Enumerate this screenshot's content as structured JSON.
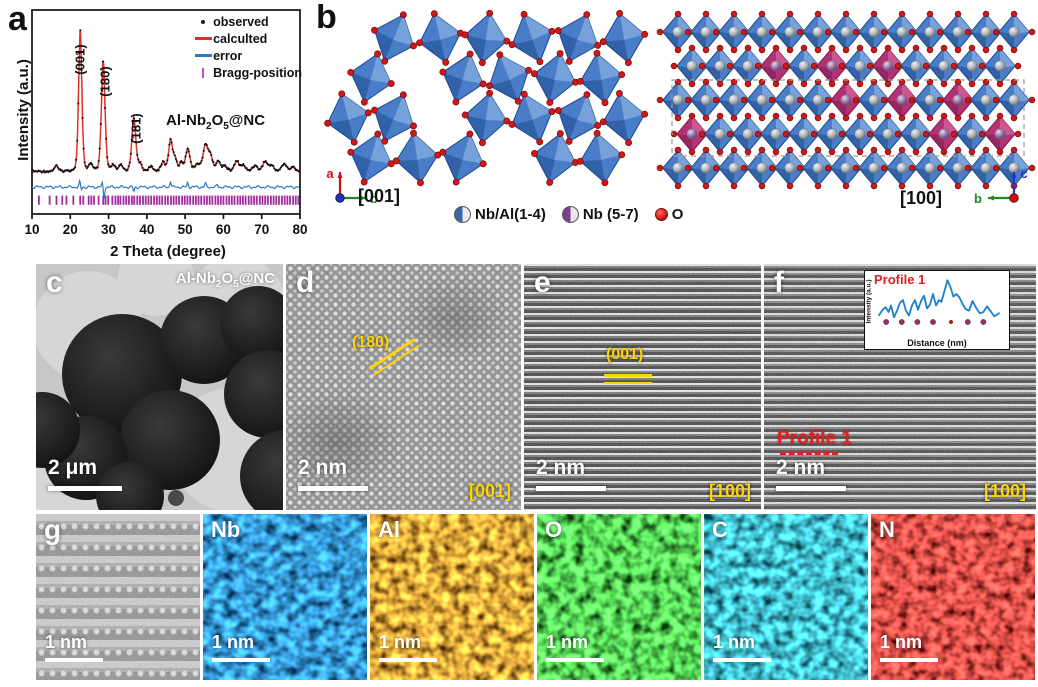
{
  "sample_formula": {
    "pre": "Al-Nb",
    "sub1": "2",
    "mid": "O",
    "sub2": "5",
    "post": "@NC"
  },
  "annotation_colors": {
    "yellow": "#ffd400",
    "red": "#e02020",
    "white": "#ffffff"
  },
  "panel_a": {
    "letter": "a",
    "xlabel": "2 Theta (degree)",
    "ylabel": "Intensity (a.u.)",
    "legend": [
      {
        "label": "observed",
        "marker": "dot",
        "color": "#1a1a1a"
      },
      {
        "label": "calculted",
        "marker": "line",
        "color": "#e03127"
      },
      {
        "label": "error",
        "marker": "line",
        "color": "#2d7bbf"
      },
      {
        "label": "Bragg-position",
        "marker": "tick",
        "color": "#c04ec0"
      }
    ],
    "peak_labels": [
      "(001)",
      "(180)",
      "(181)"
    ]
  },
  "chart_data": [
    {
      "id": "xrd",
      "type": "line",
      "xlabel": "2 Theta (degree)",
      "ylabel": "Intensity (a.u.)",
      "xlim": [
        10,
        80
      ],
      "x_ticks": [
        10,
        20,
        30,
        40,
        50,
        60,
        70,
        80
      ],
      "baseline": 4,
      "series": [
        "observed",
        "calculted",
        "error",
        "Bragg-position"
      ],
      "peaks": [
        {
          "two_theta": 16.3,
          "intensity": 4,
          "w": 0.5
        },
        {
          "two_theta": 22.6,
          "intensity": 100,
          "w": 0.45,
          "label": "(001)"
        },
        {
          "two_theta": 25.3,
          "intensity": 5,
          "w": 0.5
        },
        {
          "two_theta": 28.6,
          "intensity": 78,
          "w": 0.5,
          "label": "(180)"
        },
        {
          "two_theta": 31.2,
          "intensity": 4,
          "w": 0.5
        },
        {
          "two_theta": 33.2,
          "intensity": 4,
          "w": 0.55
        },
        {
          "two_theta": 36.6,
          "intensity": 38,
          "w": 0.55,
          "label": "(181)"
        },
        {
          "two_theta": 38.2,
          "intensity": 5,
          "w": 0.5
        },
        {
          "two_theta": 41.0,
          "intensity": 3,
          "w": 0.6
        },
        {
          "two_theta": 44.2,
          "intensity": 6,
          "w": 0.6
        },
        {
          "two_theta": 46.2,
          "intensity": 22,
          "w": 0.55
        },
        {
          "two_theta": 47.4,
          "intensity": 8,
          "w": 0.5
        },
        {
          "two_theta": 49.0,
          "intensity": 6,
          "w": 0.5
        },
        {
          "two_theta": 50.7,
          "intensity": 16,
          "w": 0.6
        },
        {
          "two_theta": 53.2,
          "intensity": 5,
          "w": 0.6
        },
        {
          "two_theta": 55.3,
          "intensity": 18,
          "w": 0.7
        },
        {
          "two_theta": 56.6,
          "intensity": 10,
          "w": 0.6
        },
        {
          "two_theta": 58.6,
          "intensity": 7,
          "w": 0.6
        },
        {
          "two_theta": 60.3,
          "intensity": 4,
          "w": 0.6
        },
        {
          "two_theta": 63.5,
          "intensity": 7,
          "w": 0.7
        },
        {
          "two_theta": 65.2,
          "intensity": 4,
          "w": 0.6
        },
        {
          "two_theta": 68.2,
          "intensity": 4,
          "w": 0.7
        },
        {
          "two_theta": 70.9,
          "intensity": 7,
          "w": 0.7
        },
        {
          "two_theta": 72.6,
          "intensity": 4,
          "w": 0.6
        },
        {
          "two_theta": 75.9,
          "intensity": 5,
          "w": 0.8
        },
        {
          "two_theta": 78.3,
          "intensity": 3,
          "w": 0.6
        }
      ],
      "error_spikes": [
        {
          "two_theta": 22.5,
          "amp": 4
        },
        {
          "two_theta": 22.9,
          "amp": -2
        },
        {
          "two_theta": 28.4,
          "amp": 3
        },
        {
          "two_theta": 28.8,
          "amp": -8
        },
        {
          "two_theta": 36.6,
          "amp": -3
        },
        {
          "two_theta": 46.2,
          "amp": 4
        },
        {
          "two_theta": 50.7,
          "amp": 3
        },
        {
          "two_theta": 55.3,
          "amp": 2.5
        },
        {
          "two_theta": 58.4,
          "amp": 1.5
        }
      ],
      "bragg_positions": [
        11.8,
        14.6,
        16.4,
        17.9,
        19.0,
        20.8,
        22.6,
        23.4,
        24.8,
        25.5,
        26.2,
        27.4,
        28.6,
        29.2,
        29.9,
        31.0,
        31.8,
        32.5,
        33.1,
        33.9,
        34.6,
        35.3,
        36.1,
        36.7,
        37.5,
        38.2,
        39.0,
        39.7,
        40.4,
        41.1,
        41.9,
        42.6,
        43.3,
        44.0,
        44.8,
        45.5,
        46.3,
        47.0,
        47.7,
        48.4,
        49.2,
        49.9,
        50.6,
        51.3,
        52.1,
        52.8,
        53.5,
        54.2,
        55.0,
        55.7,
        56.4,
        57.1,
        57.9,
        58.6,
        59.3,
        60.0,
        60.8,
        61.5,
        62.2,
        62.9,
        63.7,
        64.4,
        65.1,
        65.8,
        66.6,
        67.3,
        68.0,
        68.7,
        69.5,
        70.2,
        70.9,
        71.6,
        72.4,
        73.1,
        73.8,
        74.5,
        75.3,
        76.0,
        76.7,
        77.4,
        78.2,
        78.9,
        79.6
      ]
    },
    {
      "id": "profile-1",
      "type": "line",
      "title": "Profile 1",
      "xlabel": "Distance (nm)",
      "ylabel": "Intensity (a.u.)",
      "color": "#1a7fd0",
      "x": [
        0,
        0.03,
        0.055,
        0.08,
        0.1,
        0.125,
        0.15,
        0.175,
        0.2,
        0.225,
        0.25,
        0.275,
        0.3,
        0.325,
        0.35,
        0.375,
        0.4,
        0.425,
        0.45,
        0.475,
        0.5,
        0.52,
        0.545,
        0.57,
        0.595,
        0.62,
        0.645,
        0.67,
        0.695,
        0.72,
        0.75,
        0.78,
        0.81,
        0.84,
        0.87,
        0.9,
        0.93,
        0.96,
        1.0
      ],
      "y": [
        0.18,
        0.3,
        0.36,
        0.25,
        0.4,
        0.13,
        0.28,
        0.46,
        0.52,
        0.28,
        0.17,
        0.4,
        0.52,
        0.3,
        0.5,
        0.62,
        0.33,
        0.42,
        0.66,
        0.4,
        0.52,
        0.48,
        0.72,
        0.97,
        0.82,
        0.6,
        0.66,
        0.58,
        0.44,
        0.32,
        0.28,
        0.5,
        0.34,
        0.22,
        0.25,
        0.38,
        0.27,
        0.15,
        0.22
      ],
      "atom_marker_x": [
        0.06,
        0.19,
        0.32,
        0.45,
        0.6,
        0.74,
        0.87
      ]
    }
  ],
  "panel_b": {
    "letter": "b",
    "left_view": {
      "direction_label": "[001]",
      "axis_up": "a",
      "axis_right": "b"
    },
    "right_view": {
      "direction_label": "[100]",
      "axis_up": "c",
      "axis_left": "b"
    },
    "legend": [
      {
        "label": "Nb/Al(1-4)",
        "icon": "half-blue-silver-sphere"
      },
      {
        "label": "Nb (5-7)",
        "icon": "half-purple-silver-sphere"
      },
      {
        "label": "O",
        "icon": "red-sphere"
      }
    ],
    "colors": {
      "octahedra_blue": "#4a7dc8",
      "octahedra_magenta": "#b23274",
      "oxygen_red": "#cf1717"
    }
  },
  "panel_c": {
    "letter": "c",
    "scale_bar": "2 μm"
  },
  "panel_d": {
    "letter": "d",
    "plane_label": "(180)",
    "scale_bar": "2 nm",
    "zone_axis": "[001]"
  },
  "panel_e": {
    "letter": "e",
    "plane_label": "(001)",
    "scale_bar": "2 nm",
    "zone_axis": "[100]"
  },
  "panel_f": {
    "letter": "f",
    "profile_label": "Profile 1",
    "scale_bar": "2 nm",
    "zone_axis": "[100]",
    "inset": {
      "title": "Profile 1",
      "xlabel": "Distance (nm)",
      "ylabel": "Intensity (a.u.)"
    }
  },
  "panel_g": {
    "letter": "g",
    "scale_bar": "1 nm"
  },
  "eds_maps": [
    {
      "element": "Nb",
      "scale_bar": "1 nm",
      "color": "#1f86d8"
    },
    {
      "element": "Al",
      "scale_bar": "1 nm",
      "color": "#e89000"
    },
    {
      "element": "O",
      "scale_bar": "1 nm",
      "color": "#2ec22e"
    },
    {
      "element": "C",
      "scale_bar": "1 nm",
      "color": "#00bcd0"
    },
    {
      "element": "N",
      "scale_bar": "1 nm",
      "color": "#d81818"
    }
  ]
}
